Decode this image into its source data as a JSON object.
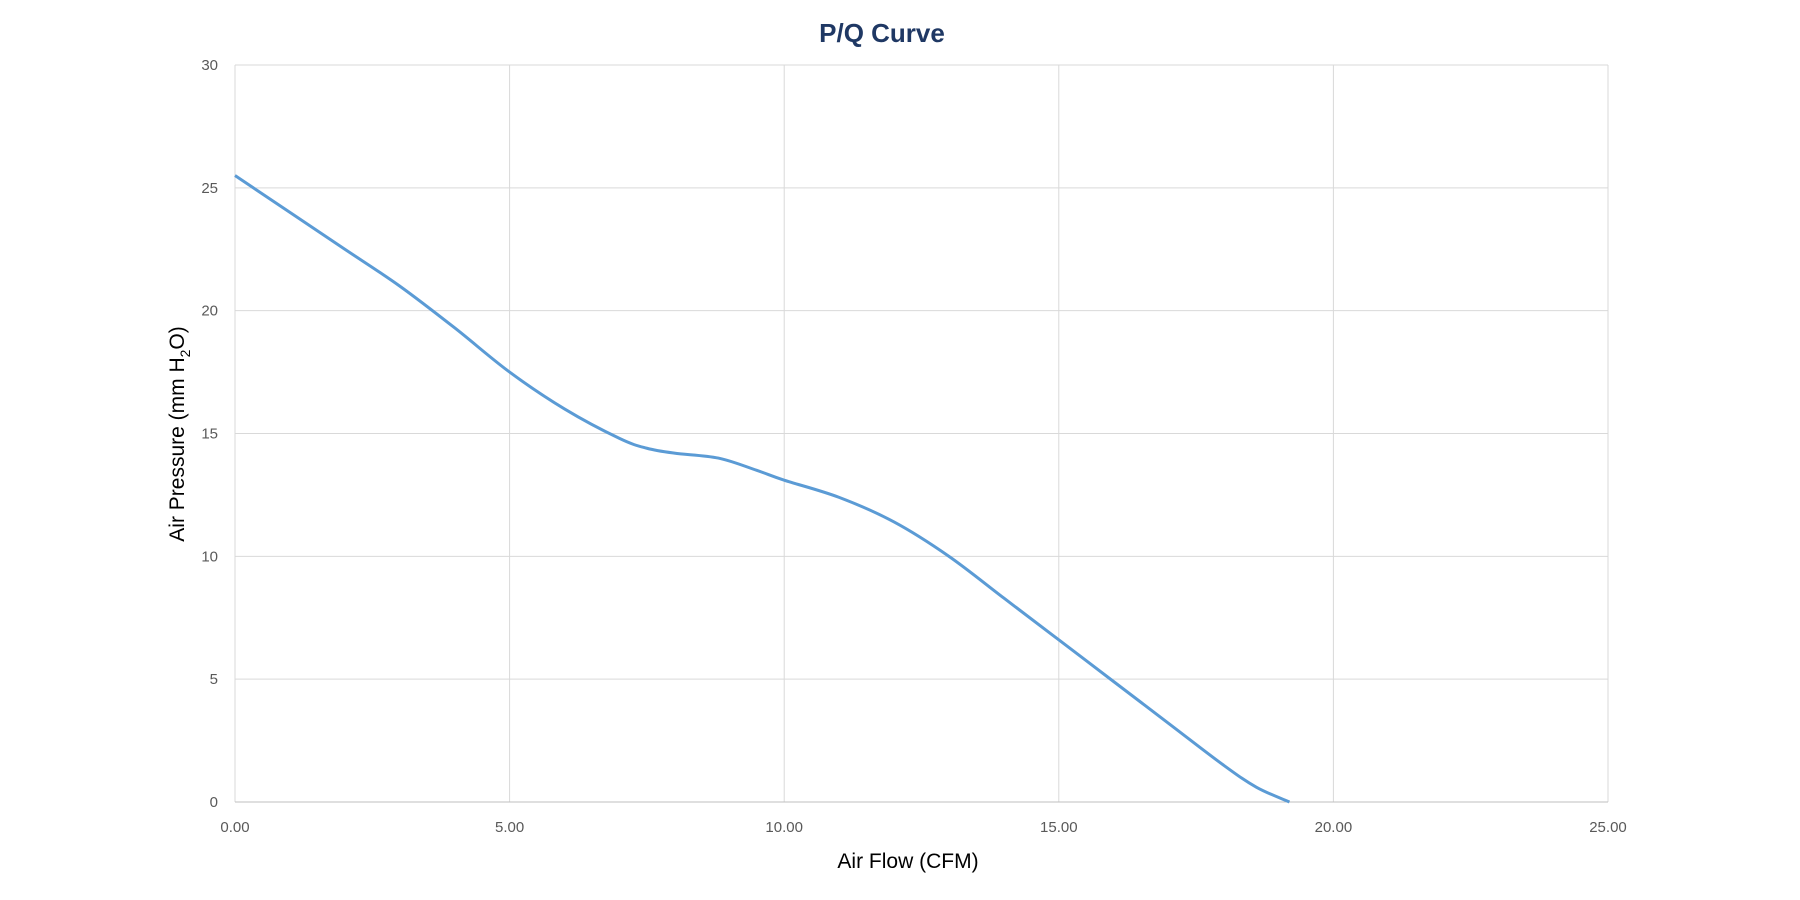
{
  "chart_data": {
    "type": "line",
    "title": "P/Q Curve",
    "xlabel": "Air Flow (CFM)",
    "ylabel": "Air Pressure (mm H2O)",
    "ylabel_parts": {
      "main": "Air Pressure (mm H",
      "sub": "2",
      "end": "O)"
    },
    "xlim": [
      0,
      25
    ],
    "ylim": [
      0,
      30
    ],
    "x_ticks": [
      "0.00",
      "5.00",
      "10.00",
      "15.00",
      "20.00",
      "25.00"
    ],
    "y_ticks": [
      "0",
      "5",
      "10",
      "15",
      "20",
      "25",
      "30"
    ],
    "grid": true,
    "series": [
      {
        "name": "P/Q",
        "color": "#5b9bd5",
        "x": [
          0,
          1,
          2,
          3,
          4,
          5,
          6,
          7,
          7.5,
          8,
          8.8,
          9.5,
          10,
          11,
          12,
          13,
          14,
          15,
          16,
          17,
          18,
          18.6,
          19.2
        ],
        "y": [
          25.5,
          24.0,
          22.5,
          21.0,
          19.3,
          17.5,
          16.0,
          14.8,
          14.4,
          14.2,
          14.0,
          13.5,
          13.1,
          12.4,
          11.4,
          10.0,
          8.3,
          6.6,
          4.9,
          3.2,
          1.5,
          0.6,
          0.0
        ]
      }
    ]
  }
}
